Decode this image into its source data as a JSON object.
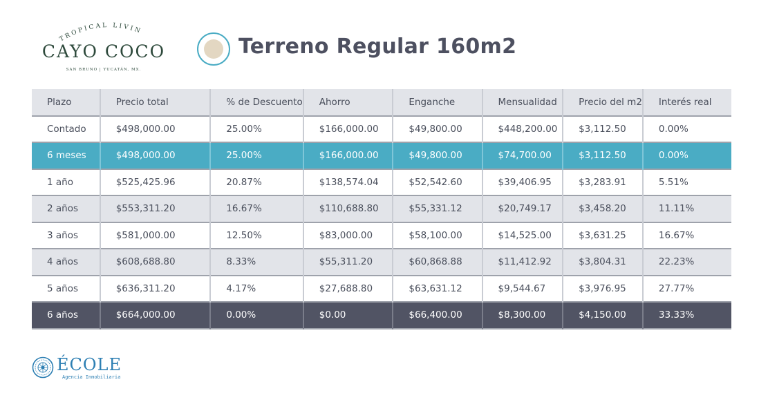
{
  "logo": {
    "arc_text": "TROPICAL LIVING",
    "brand": "CAYO COCO",
    "subline": "SAN BRUNO | YUCATÁN, MX."
  },
  "title": "Terreno Regular 160m2",
  "table": {
    "headers": [
      "Plazo",
      "Precio total",
      "% de Descuento",
      "Ahorro",
      "Enganche",
      "Mensualidad",
      "Precio del m2",
      "Interés real"
    ],
    "rows": [
      [
        "Contado",
        "$498,000.00",
        "25.00%",
        "$166,000.00",
        "$49,800.00",
        "$448,200.00",
        "$3,112.50",
        "0.00%"
      ],
      [
        "6 meses",
        "$498,000.00",
        "25.00%",
        "$166,000.00",
        "$49,800.00",
        "$74,700.00",
        "$3,112.50",
        "0.00%"
      ],
      [
        "1 año",
        "$525,425.96",
        "20.87%",
        "$138,574.04",
        "$52,542.60",
        "$39,406.95",
        "$3,283.91",
        "5.51%"
      ],
      [
        "2 años",
        "$553,311.20",
        "16.67%",
        "$110,688.80",
        "$55,331.12",
        "$20,749.17",
        "$3,458.20",
        "11.11%"
      ],
      [
        "3 años",
        "$581,000.00",
        "12.50%",
        "$83,000.00",
        "$58,100.00",
        "$14,525.00",
        "$3,631.25",
        "16.67%"
      ],
      [
        "4 años",
        "$608,688.80",
        "8.33%",
        "$55,311.20",
        "$60,868.88",
        "$11,412.92",
        "$3,804.31",
        "22.23%"
      ],
      [
        "5 años",
        "$636,311.20",
        "4.17%",
        "$27,688.80",
        "$63,631.12",
        "$9,544.67",
        "$3,976.95",
        "27.77%"
      ],
      [
        "6 años",
        "$664,000.00",
        "0.00%",
        "$0.00",
        "$66,400.00",
        "$8,300.00",
        "$4,150.00",
        "33.33%"
      ]
    ]
  },
  "footer": {
    "brand": "ÉCOLE",
    "tagline": "Agencia Inmobiliaria"
  },
  "colors": {
    "teal_highlight": "#4aacc4",
    "dark_row": "#515464",
    "gray_row": "#e2e4e9",
    "brand_green": "#2e4a3c",
    "brand_blue": "#2d7fb3"
  }
}
